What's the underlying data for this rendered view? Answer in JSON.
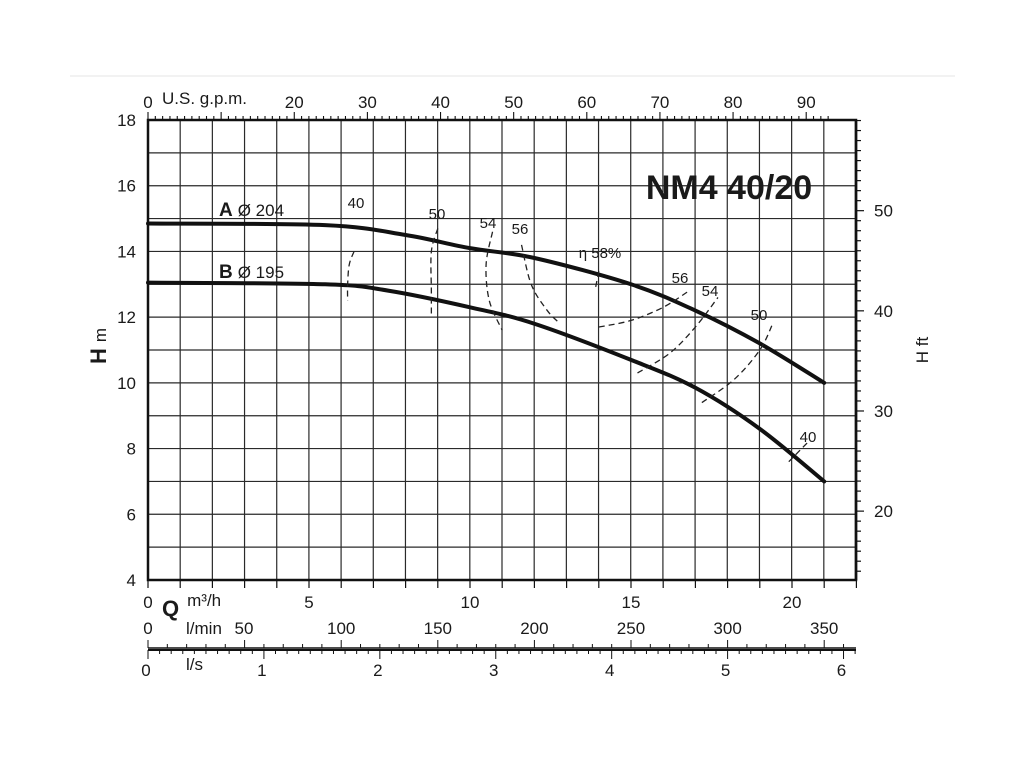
{
  "chart_data": {
    "type": "line",
    "title": "NM4 40/20",
    "x_axis": {
      "symbol": "Q",
      "unit": "m³/h",
      "range": [
        0,
        22
      ],
      "ticks": [
        "0",
        "5",
        "10",
        "15",
        "20"
      ],
      "tick_values": [
        0,
        5,
        10,
        15,
        20
      ]
    },
    "y_axis": {
      "symbol": "H",
      "unit": "m",
      "range": [
        4,
        18
      ],
      "ticks": [
        "4",
        "6",
        "8",
        "10",
        "12",
        "14",
        "16",
        "18"
      ],
      "tick_values": [
        4,
        6,
        8,
        10,
        12,
        14,
        16,
        18
      ]
    },
    "secondary_axes": {
      "top_gpm": {
        "label": "U.S. g.p.m.",
        "ticks": [
          "0",
          "20",
          "30",
          "40",
          "50",
          "60",
          "70",
          "80",
          "90"
        ],
        "tick_values": [
          0,
          20,
          30,
          40,
          50,
          60,
          70,
          80,
          90
        ]
      },
      "lmin": {
        "label": "l/min",
        "ticks": [
          "0",
          "50",
          "100",
          "150",
          "200",
          "250",
          "300",
          "350"
        ],
        "tick_values": [
          0,
          50,
          100,
          150,
          200,
          250,
          300,
          350
        ]
      },
      "ls": {
        "label": "l/s",
        "ticks": [
          "0",
          "1",
          "2",
          "3",
          "4",
          "5",
          "6"
        ],
        "tick_values": [
          0,
          1,
          2,
          3,
          4,
          5,
          6
        ]
      },
      "right_ft": {
        "label": "H ft",
        "ticks": [
          "20",
          "30",
          "40",
          "50"
        ],
        "tick_values": [
          20,
          30,
          40,
          50
        ]
      }
    },
    "series": [
      {
        "letter": "A",
        "name": "Ø 204",
        "x": [
          0,
          5.5,
          8,
          10,
          12,
          15,
          17,
          19,
          21
        ],
        "y": [
          14.85,
          14.8,
          14.5,
          14.1,
          13.8,
          13.0,
          12.2,
          11.2,
          10.0
        ]
      },
      {
        "letter": "B",
        "name": "Ø 195",
        "x": [
          0,
          5.5,
          7.5,
          10,
          12,
          15,
          17,
          19,
          21
        ],
        "y": [
          13.05,
          13.0,
          12.8,
          12.3,
          11.8,
          10.7,
          9.85,
          8.6,
          7.0
        ]
      }
    ],
    "efficiency_curves": [
      {
        "label": "40",
        "x": [
          6.4,
          6.25,
          6.2,
          6.2
        ],
        "y": [
          14.0,
          13.6,
          13.0,
          12.5
        ]
      },
      {
        "label": "50",
        "x": [
          9.0,
          8.8,
          8.8,
          8.8
        ],
        "y": [
          14.7,
          14.0,
          12.8,
          12.0
        ]
      },
      {
        "label": "54",
        "x": [
          10.7,
          10.5,
          10.6,
          11.0
        ],
        "y": [
          14.6,
          13.6,
          12.5,
          11.6
        ]
      },
      {
        "label": "56",
        "x": [
          11.6,
          11.9,
          12.4,
          12.8
        ],
        "y": [
          14.2,
          13.0,
          12.2,
          11.8
        ]
      },
      {
        "label": "η 58%",
        "x": [
          14.0,
          13.9
        ],
        "y": [
          13.4,
          12.9
        ]
      },
      {
        "label": "56",
        "x": [
          14.0,
          15.0,
          16.0,
          16.8
        ],
        "y": [
          11.7,
          11.9,
          12.3,
          12.8
        ]
      },
      {
        "label": "54",
        "x": [
          15.2,
          16.2,
          17.0,
          17.7
        ],
        "y": [
          10.3,
          10.9,
          11.7,
          12.6
        ]
      },
      {
        "label": "50",
        "x": [
          17.2,
          18.2,
          19.0,
          19.4
        ],
        "y": [
          9.4,
          10.1,
          11.0,
          11.8
        ]
      },
      {
        "label": "40",
        "x": [
          19.9,
          20.5
        ],
        "y": [
          7.6,
          8.2
        ]
      }
    ],
    "grid": true
  }
}
